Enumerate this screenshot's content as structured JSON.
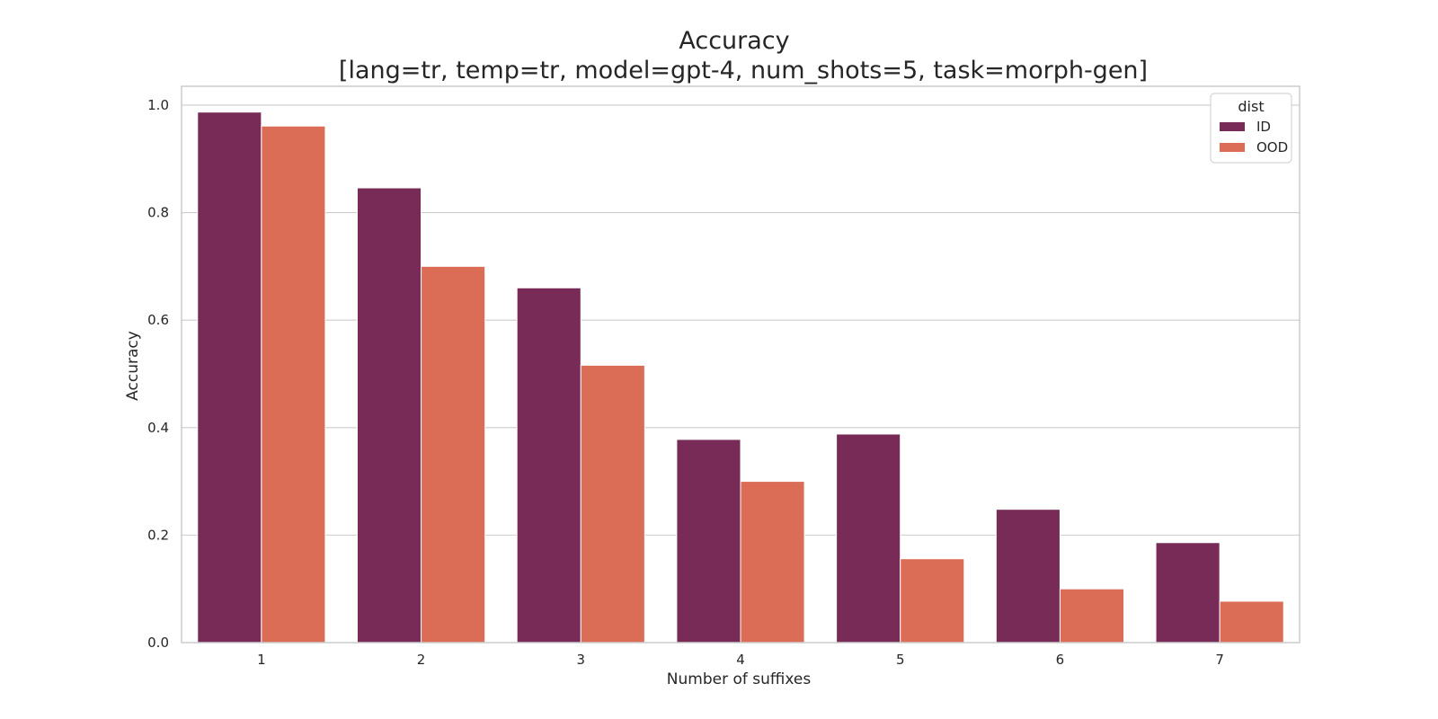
{
  "chart_data": {
    "type": "bar",
    "title": "Accuracy",
    "subtitle": "[lang=tr, temp=tr, model=gpt-4, num_shots=5, task=morph-gen]",
    "xlabel": "Number of suffixes",
    "ylabel": "Accuracy",
    "categories": [
      "1",
      "2",
      "3",
      "4",
      "5",
      "6",
      "7"
    ],
    "series": [
      {
        "name": "ID",
        "color": "#772b56",
        "values": [
          0.987,
          0.846,
          0.66,
          0.378,
          0.388,
          0.248,
          0.186
        ]
      },
      {
        "name": "OOD",
        "color": "#db6d57",
        "values": [
          0.961,
          0.7,
          0.516,
          0.3,
          0.156,
          0.1,
          0.077
        ]
      }
    ],
    "ylim": [
      0,
      1.035
    ],
    "yticks": [
      "0.0",
      "0.2",
      "0.4",
      "0.6",
      "0.8",
      "1.0"
    ],
    "grid": true,
    "legend": {
      "title": "dist",
      "placement": "top-right"
    }
  }
}
